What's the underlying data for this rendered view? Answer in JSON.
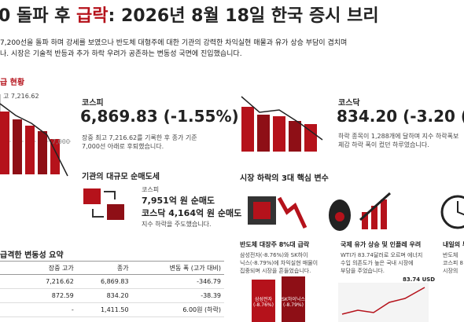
{
  "header": {
    "title_pre": "0 돌파 후 ",
    "title_em": "급락",
    "title_post": ": 2026년 8월 18일 한국 증시 브리",
    "intro": [
      "7,200선을 돌파 하며 강세를 보였으나 반도체 대형주에 대한 기관의 강력한 차익실현 매물과 유가 상승 부담이 겹치며",
      "나. 시장은 기술적 반등과 추가 하락 우려가 공존하는 변동성 국면에 진입했습니다."
    ]
  },
  "status": {
    "title": "급 현황",
    "chart_high": "고 7,216.62",
    "chart_level": "7,000"
  },
  "kospi": {
    "name": "코스피",
    "value": "6,869.83 (-1.55%)",
    "desc": [
      "장중 최고 7,216.62를 기록한 후 종가 기준",
      "7,000선 아래로 후퇴했습니다."
    ]
  },
  "kosdaq": {
    "name": "코스닥",
    "value": "834.20 (-3.20 (-",
    "desc": [
      "하락 종목이 1,288개에 달하며 지수 하락폭보",
      "체감 하락 폭이 컸던 하루였습니다."
    ]
  },
  "institution": {
    "title": "기관의 대규모 순매도세",
    "line1_label": "코스피",
    "line1": "7,951억 원 순매도",
    "line2": "코스닥 4,164억 원 순매도",
    "note": "지수 하락을 주도했습니다."
  },
  "factors": {
    "title": "시장 하락의 3대 핵심 변수",
    "cards": [
      {
        "title": "반도체 대장주 8%대 급락",
        "body": [
          "삼성전자(-8.76%)와 SK하이",
          "닉스(-8.79%)에 차익실현 매물이",
          "집중되며 시장을 흔들었습니다."
        ],
        "bars": [
          "삼성전자 (-8.76%)",
          "SK하이닉스 (-8.79%)"
        ]
      },
      {
        "title": "국제 유가 상승 및 인플레 우려",
        "body": [
          "WTI가 83.74달러로 오르며 에너지",
          "수입 의존도가 높은 국내 시장에",
          "부담을 주었습니다."
        ],
        "badge": "83.74 USD"
      },
      {
        "title": "내일의 투",
        "body": [
          "반도체",
          "코스피 8",
          "시장의"
        ]
      }
    ]
  },
  "table": {
    "title": "급격한 변동성 요약",
    "headers": [
      "장중 고가",
      "종가",
      "변동 폭 (고가 대비)"
    ],
    "rows": [
      [
        "7,216.62",
        "6,869.83",
        "-346.79"
      ],
      [
        "872.59",
        "834.20",
        "-38.39"
      ],
      [
        "-",
        "1,411.50",
        "6.00원 (하락)"
      ]
    ]
  }
}
